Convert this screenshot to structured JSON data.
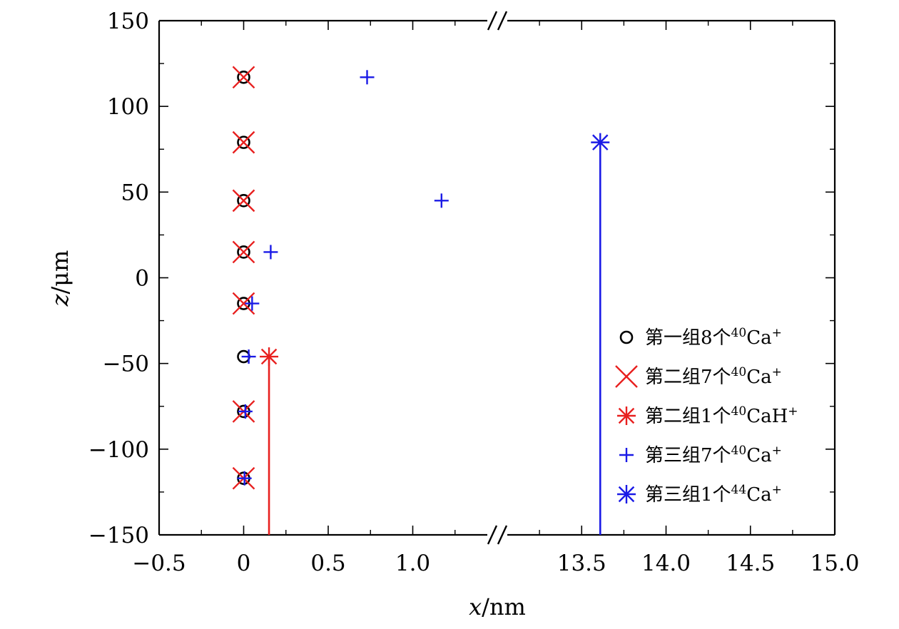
{
  "chart_data": {
    "type": "scatter",
    "title": "",
    "xlabel": {
      "var": "x",
      "unit": "/nm"
    },
    "ylabel": {
      "var": "z",
      "unit": "/μm"
    },
    "axis_break": {
      "x_left_max": 1.5,
      "x_right_min": 13.0
    },
    "xlim_left": [
      -0.5,
      1.5
    ],
    "xlim_right": [
      13.0,
      15.0
    ],
    "ylim": [
      -150,
      150
    ],
    "x_ticks": [
      {
        "value": -0.5,
        "label": "−0.5"
      },
      {
        "value": 0,
        "label": "0"
      },
      {
        "value": 0.5,
        "label": "0.5"
      },
      {
        "value": 1.0,
        "label": "1.0"
      },
      {
        "value": 13.5,
        "label": "13.5"
      },
      {
        "value": 14.0,
        "label": "14.0"
      },
      {
        "value": 14.5,
        "label": "14.5"
      },
      {
        "value": 15.0,
        "label": "15.0"
      }
    ],
    "y_ticks": [
      {
        "value": 150,
        "label": "150"
      },
      {
        "value": 100,
        "label": "100"
      },
      {
        "value": 50,
        "label": "50"
      },
      {
        "value": 0,
        "label": "0"
      },
      {
        "value": -50,
        "label": "−50"
      },
      {
        "value": -100,
        "label": "−100"
      },
      {
        "value": -150,
        "label": "−150"
      }
    ],
    "legend_position": "bottom-right",
    "series": [
      {
        "name": "第一组8个40Ca+",
        "label_main": "第一组8个",
        "label_sup": "40",
        "label_tail": "Ca",
        "label_sup2": "+",
        "marker": "circle",
        "color": "#000000",
        "points": [
          [
            0,
            117
          ],
          [
            0,
            79
          ],
          [
            0,
            45
          ],
          [
            0,
            15
          ],
          [
            0,
            -15
          ],
          [
            0,
            -46
          ],
          [
            0,
            -78
          ],
          [
            0,
            -117
          ]
        ]
      },
      {
        "name": "第二组7个40Ca+",
        "label_main": "第二组7个",
        "label_sup": "40",
        "label_tail": "Ca",
        "label_sup2": "+",
        "marker": "x",
        "color": "#e8201f",
        "points": [
          [
            0,
            117
          ],
          [
            0,
            79
          ],
          [
            0,
            45
          ],
          [
            0,
            15
          ],
          [
            0,
            -15
          ],
          [
            0,
            -78
          ],
          [
            0,
            -117
          ]
        ]
      },
      {
        "name": "第二组1个40CaH+",
        "label_main": "第二组1个",
        "label_sup": "40",
        "label_tail": "CaH",
        "label_sup2": "+",
        "marker": "asterisk",
        "color": "#e8201f",
        "stem": true,
        "points": [
          [
            0.15,
            -46
          ]
        ]
      },
      {
        "name": "第三组7个40Ca+",
        "label_main": "第三组7个",
        "label_sup": "40",
        "label_tail": "Ca",
        "label_sup2": "+",
        "marker": "plus",
        "color": "#1a1ae6",
        "points": [
          [
            0.73,
            117
          ],
          [
            1.17,
            45
          ],
          [
            0.16,
            15
          ],
          [
            0.05,
            -15
          ],
          [
            0.03,
            -46
          ],
          [
            0.01,
            -78
          ],
          [
            0.005,
            -117
          ]
        ]
      },
      {
        "name": "第三组1个44Ca+",
        "label_main": "第三组1个",
        "label_sup": "44",
        "label_tail": "Ca",
        "label_sup2": "+",
        "marker": "asterisk",
        "color": "#1a1ae6",
        "stem": true,
        "points": [
          [
            13.61,
            79
          ]
        ]
      }
    ]
  }
}
